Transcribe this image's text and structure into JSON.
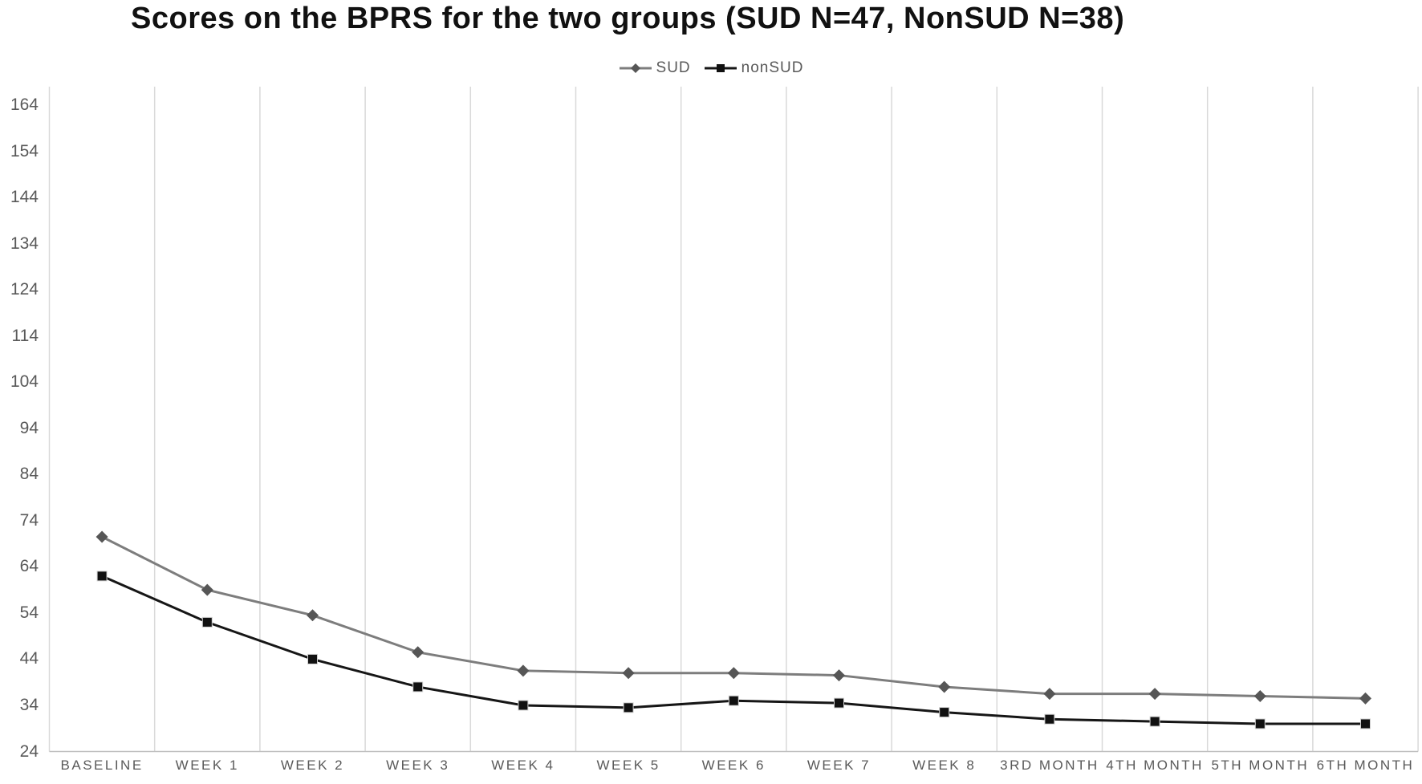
{
  "chart": {
    "title": "Scores on the BPRS for the two groups (SUD N=47, NonSUD N=38)"
  },
  "chart_data": {
    "type": "line",
    "title": "Scores on the BPRS for the two groups (SUD N=47, NonSUD N=38)",
    "categories": [
      "BASELINE",
      "WEEK 1",
      "WEEK 2",
      "WEEK 3",
      "WEEK 4",
      "WEEK 5",
      "WEEK 6",
      "WEEK 7",
      "WEEK 8",
      "3RD MONTH",
      "4TH MONTH",
      "5TH MONTH",
      "6TH MONTH"
    ],
    "series": [
      {
        "name": "SUD",
        "marker": "diamond",
        "line_color": "#7d7d7d",
        "marker_color": "#565656",
        "values": [
          70.5,
          59,
          53.5,
          45.5,
          41.5,
          41,
          41,
          40.5,
          38,
          36.5,
          36.5,
          36,
          35.5
        ]
      },
      {
        "name": "nonSUD",
        "marker": "square",
        "line_color": "#161616",
        "marker_color": "#111111",
        "values": [
          62,
          52,
          44,
          38,
          34,
          33.5,
          35,
          34.5,
          32.5,
          31,
          30.5,
          30,
          30
        ]
      }
    ],
    "ylim": [
      24,
      168
    ],
    "yticks": [
      24,
      34,
      44,
      54,
      64,
      74,
      84,
      94,
      104,
      114,
      124,
      134,
      144,
      154,
      164
    ],
    "grid": "vertical-only",
    "legend_position": "top-center",
    "colors": {
      "axis_text": "#595959",
      "gridline": "#d9d9d9",
      "axis_line": "#c0c0c0",
      "title_text": "#111111",
      "background": "#ffffff"
    }
  }
}
